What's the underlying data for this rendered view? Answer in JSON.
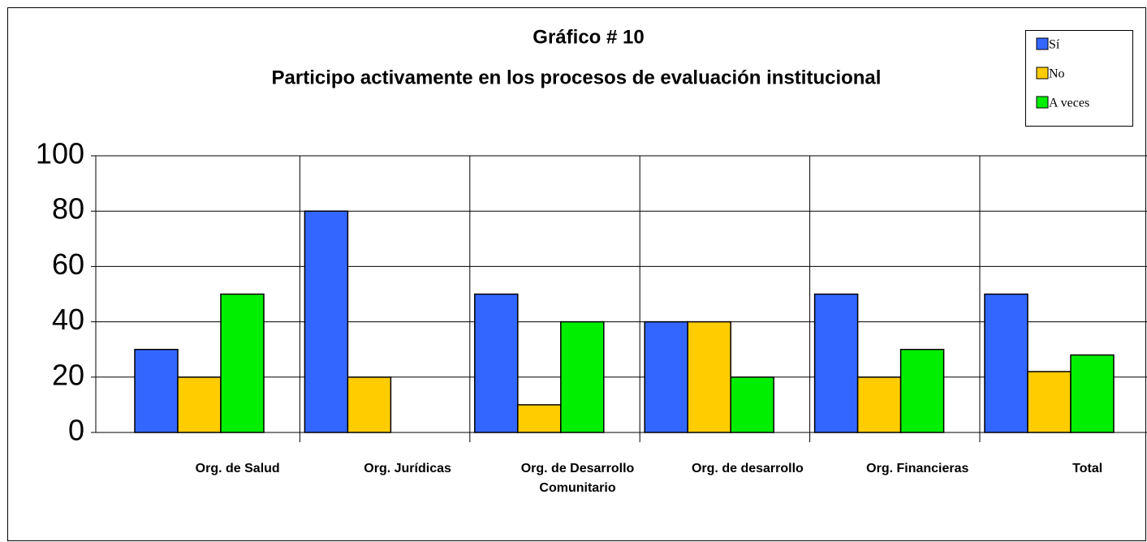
{
  "chart_data": {
    "type": "bar",
    "title": "Gráfico # 10",
    "subtitle": "Participo activamente en los procesos de evaluación institucional",
    "categories": [
      "Org. de Salud",
      "Org. Jurídicas",
      "Org. de Desarrollo Comunitario",
      "Org. de desarrollo",
      "Org. Financieras",
      "Total"
    ],
    "series": [
      {
        "name": "Sí",
        "color": "#3366ff",
        "values": [
          30,
          80,
          50,
          40,
          50,
          50
        ]
      },
      {
        "name": "No",
        "color": "#ffcc00",
        "values": [
          20,
          20,
          10,
          40,
          20,
          22
        ]
      },
      {
        "name": "A veces",
        "color": "#00ee00",
        "values": [
          50,
          0,
          40,
          20,
          30,
          28
        ]
      }
    ],
    "ylim": [
      0,
      100
    ],
    "yticks": [
      0,
      20,
      40,
      60,
      80,
      100
    ],
    "grid": true,
    "legend": "top-right"
  }
}
